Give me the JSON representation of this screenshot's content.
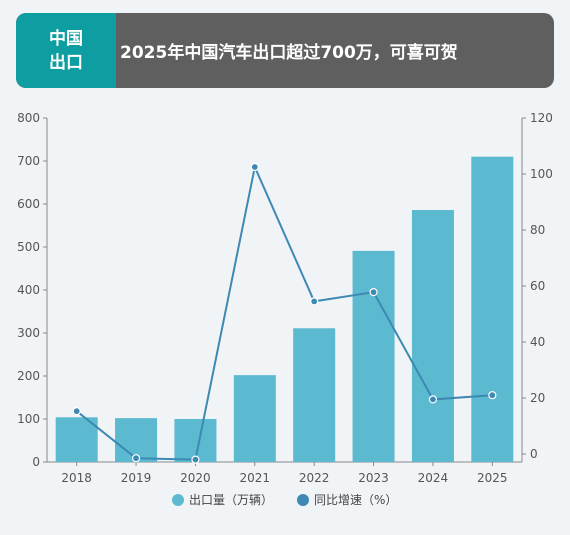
{
  "header": {
    "tag_line1": "中国",
    "tag_line2": "出口",
    "title": "2025年中国汽车出口超过700万，可喜可贺"
  },
  "colors": {
    "header_bg": "#5f5f5f",
    "tag_bg": "#0e9da0",
    "bar": "#5bb9d0",
    "line": "#3d89b3"
  },
  "chart_data": {
    "type": "bar+line",
    "categories": [
      "2018",
      "2019",
      "2020",
      "2021",
      "2022",
      "2023",
      "2024",
      "2025"
    ],
    "series": [
      {
        "name": "出口量（万辆）",
        "type": "bar",
        "axis": "left",
        "values": [
          104,
          102,
          100,
          202,
          311,
          491,
          586,
          710
        ]
      },
      {
        "name": "同比增速（%）",
        "type": "line",
        "axis": "right",
        "values": [
          15.3,
          -1.5,
          -2.0,
          102.5,
          54.5,
          57.8,
          19.5,
          21.0
        ]
      }
    ],
    "y_left": {
      "min": 0,
      "max": 800,
      "ticks": [
        "0",
        "100",
        "200",
        "300",
        "400",
        "500",
        "600",
        "700",
        "800"
      ]
    },
    "y_right": {
      "min": 0,
      "max": 120,
      "ticks": [
        "0",
        "20",
        "40",
        "60",
        "80",
        "100",
        "120"
      ]
    },
    "grid": false,
    "legend_position": "bottom-center"
  }
}
